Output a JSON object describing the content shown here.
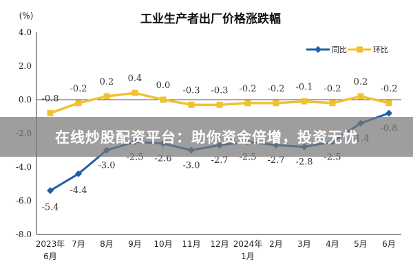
{
  "chart_data": {
    "type": "line",
    "title": "工业生产者出厂价格涨跌幅",
    "ylabel": "(%)",
    "ylim": [
      -8.0,
      4.0
    ],
    "yticks": [
      "4.0",
      "2.0",
      "0.0",
      "-2.0",
      "-4.0",
      "-6.0",
      "-8.0"
    ],
    "categories": [
      [
        "2023年",
        "6月"
      ],
      [
        "7月"
      ],
      [
        "8月"
      ],
      [
        "9月"
      ],
      [
        "10月"
      ],
      [
        "11月"
      ],
      [
        "12月"
      ],
      [
        "2024年",
        "1月"
      ],
      [
        "2月"
      ],
      [
        "3月"
      ],
      [
        "4月"
      ],
      [
        "5月"
      ],
      [
        "6月"
      ]
    ],
    "series": [
      {
        "name": "同比",
        "color": "#1f5fa6",
        "marker": "diamond",
        "values": [
          -5.4,
          -4.4,
          -3.0,
          -2.5,
          -2.6,
          -3.0,
          -2.7,
          -2.5,
          -2.7,
          -2.8,
          -2.5,
          -1.4,
          -0.8
        ],
        "labels": [
          "-5.4",
          "-4.4",
          "-3.0",
          "-2.5",
          "-2.6",
          "-3.0",
          "-2.7",
          "-2.5",
          "-2.7",
          "-2.8",
          "-2.5",
          "-1.4",
          "-0.8"
        ]
      },
      {
        "name": "环比",
        "color": "#f2c12e",
        "marker": "square",
        "values": [
          -0.8,
          -0.2,
          0.2,
          0.4,
          0.0,
          -0.3,
          -0.3,
          -0.2,
          -0.2,
          -0.1,
          -0.2,
          0.2,
          -0.2
        ],
        "labels": [
          "-0.8",
          "-0.2",
          "0.2",
          "0.4",
          "0.0",
          "-0.3",
          "-0.3",
          "-0.2",
          "-0.2",
          "-0.1",
          "-0.2",
          "0.2",
          "-0.2"
        ]
      }
    ],
    "legend_position": "top-right",
    "grid": false
  },
  "banner": {
    "text": "在线炒股配资平台：助你资金倍增，投资无忧"
  }
}
